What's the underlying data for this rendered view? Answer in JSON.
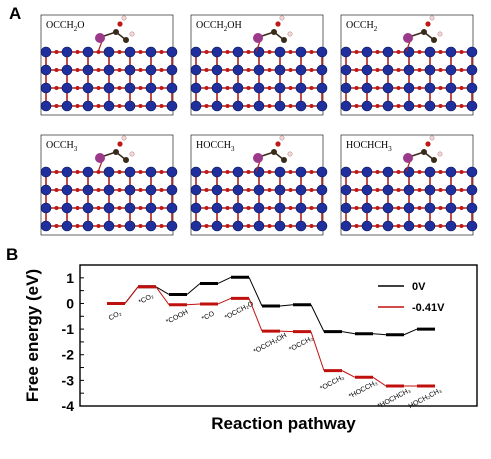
{
  "panel_a": {
    "letter": "A",
    "structures": [
      {
        "label": "OCCH",
        "sub": "2",
        "suffix": "O"
      },
      {
        "label": "OCCH",
        "sub": "2",
        "suffix": "OH"
      },
      {
        "label": "OCCH",
        "sub": "2",
        "suffix": ""
      },
      {
        "label": "OCCH",
        "sub": "3",
        "suffix": ""
      },
      {
        "label": "HOCCH",
        "sub": "3",
        "suffix": ""
      },
      {
        "label": "HOCHCH",
        "sub": "3",
        "suffix": ""
      }
    ],
    "colors": {
      "slab_atom": "#1f2f9c",
      "bond": "#b0201a",
      "dopant": "#9b3a8a",
      "carbon": "#3a2a1a",
      "oxygen": "#c01818",
      "hydrogen": "#f2d8d8"
    }
  },
  "chart_data": {
    "letter": "B",
    "type": "line",
    "ylabel": "Free energy (eV)",
    "xlabel": "Reaction pathway",
    "ylim": [
      -4,
      1.5
    ],
    "yticks": [
      "1.5",
      "1",
      "0.5",
      "0",
      "-0.5",
      "-1",
      "-1.5",
      "-2",
      "-2.5",
      "-3",
      "-3.5",
      "-4"
    ],
    "categories": [
      "CO₂",
      "*CO₂",
      "*COOH",
      "*CO",
      "*OCCH₂O",
      "*OCCH₂OH",
      "*OCCH₂",
      "*OCCH₃",
      "*HOCCH₃",
      "*HOCHCH₃",
      "HOCH₂CH₃"
    ],
    "series": [
      {
        "name": "0V",
        "color": "#000000",
        "values": [
          0,
          0.65,
          0.35,
          0.78,
          1.02,
          -0.1,
          -0.05,
          -1.1,
          -1.18,
          -1.22,
          -1.0
        ]
      },
      {
        "name": "-0.41V",
        "color": "#c0100e",
        "values": [
          0,
          0.65,
          -0.05,
          -0.02,
          0.2,
          -1.08,
          -1.1,
          -2.62,
          -2.88,
          -3.22,
          -3.22
        ]
      }
    ],
    "legend": "top-right"
  }
}
